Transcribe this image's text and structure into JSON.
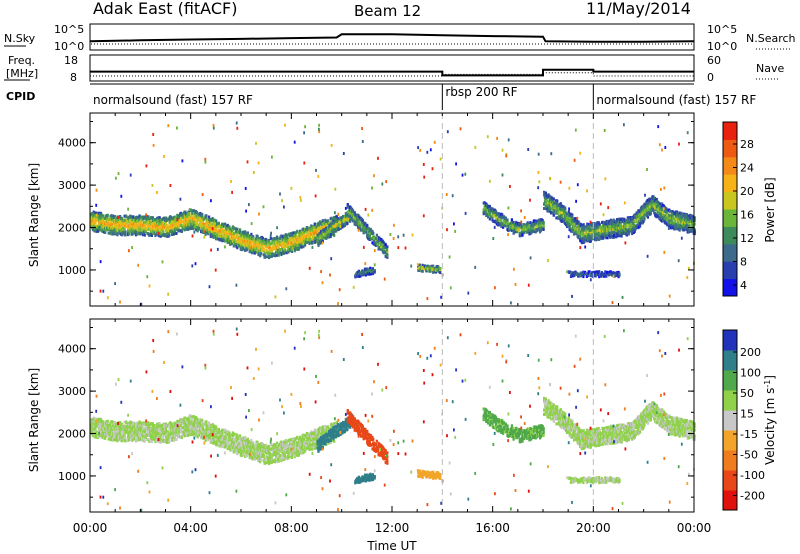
{
  "header": {
    "radar": "Adak East (fitACF)",
    "beam": "Beam 12",
    "date": "11/May/2014"
  },
  "noise_panel": {
    "left_label": "N.Sky",
    "right_label": "N.Search",
    "left_ticks": [
      "10^5",
      "10^0"
    ],
    "right_ticks": [
      "10^5",
      "10^0"
    ]
  },
  "freq_panel": {
    "left_label_1": "Freq.",
    "left_label_2": "[MHz]",
    "right_label": "Nave",
    "left_ticks": [
      "18",
      "8"
    ],
    "right_ticks": [
      "60",
      "0"
    ]
  },
  "cpid": {
    "label": "CPID",
    "segments": [
      {
        "text": "normalsound (fast) 157 RF",
        "start": 0,
        "end": 14
      },
      {
        "text": "rbsp 200 RF",
        "start": 14,
        "end": 20
      },
      {
        "text": "normalsound (fast) 157 RF",
        "start": 20,
        "end": 24
      }
    ]
  },
  "power_colorbar": {
    "label": "Power [dB]",
    "ticks": [
      "28",
      "24",
      "20",
      "16",
      "12",
      "8",
      "4"
    ],
    "colors": [
      "#1212e8",
      "#2a3fae",
      "#3c6a8a",
      "#3d8a5a",
      "#6ab53a",
      "#c8c61f",
      "#f7b218",
      "#f38a17",
      "#ef5a12",
      "#e8220e"
    ]
  },
  "velocity_colorbar": {
    "label": "Velocity [m s",
    "exponent": "-1",
    "label_end": "]",
    "ticks": [
      "200",
      "100",
      "50",
      "15",
      "-15",
      "-50",
      "-100",
      "-200"
    ],
    "colors": [
      "#2233bb",
      "#2f7f8a",
      "#4fa84a",
      "#8fd24a",
      "#c8c8c8",
      "#f2a52a",
      "#ef7c1e",
      "#e84818",
      "#e0100c"
    ]
  },
  "chart_data": {
    "type": "heatmap",
    "xlabel": "Time UT",
    "ylabel": "Slant Range [km]",
    "xlim": [
      0,
      24
    ],
    "ylim": [
      150,
      4700
    ],
    "x_ticks": [
      "00:00",
      "04:00",
      "08:00",
      "12:00",
      "16:00",
      "20:00",
      "00:00"
    ],
    "y_ticks": [
      "1000",
      "2000",
      "3000",
      "4000"
    ],
    "mode_change_times": [
      14,
      20
    ],
    "noise_sky_level": [
      [
        0,
        0.55
      ],
      [
        2,
        0.62
      ],
      [
        4,
        0.68
      ],
      [
        6,
        0.72
      ],
      [
        8,
        0.78
      ],
      [
        9.8,
        0.82
      ],
      [
        10,
        1.05
      ],
      [
        12,
        1.05
      ],
      [
        14,
        0.98
      ],
      [
        16,
        0.92
      ],
      [
        18,
        0.88
      ],
      [
        18.1,
        0.55
      ],
      [
        20,
        0.52
      ],
      [
        22,
        0.52
      ],
      [
        24,
        0.55
      ]
    ],
    "frequency_mhz": [
      {
        "start": 0,
        "end": 10,
        "value": 10.3
      },
      {
        "start": 10,
        "end": 14,
        "value": 10.3
      },
      {
        "start": 14,
        "end": 18,
        "value": 8.6
      },
      {
        "start": 18,
        "end": 20,
        "value": 11.2
      },
      {
        "start": 20,
        "end": 24,
        "value": 10.3
      }
    ],
    "nave": [
      {
        "start": 0,
        "end": 14,
        "value": 10
      },
      {
        "start": 14,
        "end": 18,
        "value": 14
      },
      {
        "start": 18,
        "end": 20,
        "value": 18
      },
      {
        "start": 20,
        "end": 24,
        "value": 10
      }
    ],
    "echo_bands": [
      {
        "t_start": 0.0,
        "t_end": 9.8,
        "range_nodes": [
          [
            0,
            2150
          ],
          [
            1,
            2050
          ],
          [
            2,
            2050
          ],
          [
            3,
            2000
          ],
          [
            4,
            2200
          ],
          [
            5,
            1950
          ],
          [
            6,
            1700
          ],
          [
            7,
            1500
          ],
          [
            8,
            1650
          ],
          [
            9,
            1900
          ],
          [
            9.8,
            2050
          ]
        ],
        "width": 450,
        "power": 20,
        "velocity": 0
      },
      {
        "t_start": 9.0,
        "t_end": 10.4,
        "range_nodes": [
          [
            9.0,
            1700
          ],
          [
            9.6,
            2000
          ],
          [
            10.4,
            2300
          ]
        ],
        "width": 280,
        "power": 16,
        "velocity": 120
      },
      {
        "t_start": 10.2,
        "t_end": 11.8,
        "range_nodes": [
          [
            10.2,
            2400
          ],
          [
            11.0,
            1900
          ],
          [
            11.8,
            1400
          ]
        ],
        "width": 300,
        "power": 14,
        "velocity": -180
      },
      {
        "t_start": 15.6,
        "t_end": 18.0,
        "range_nodes": [
          [
            15.6,
            2450
          ],
          [
            16.2,
            2200
          ],
          [
            17.0,
            1950
          ],
          [
            18.0,
            2050
          ]
        ],
        "width": 300,
        "power": 14,
        "velocity": 40
      },
      {
        "t_start": 18.0,
        "t_end": 24.0,
        "range_nodes": [
          [
            18.0,
            2650
          ],
          [
            18.8,
            2300
          ],
          [
            19.5,
            1850
          ],
          [
            20.5,
            1950
          ],
          [
            21.5,
            2050
          ],
          [
            22.3,
            2550
          ],
          [
            23.0,
            2200
          ],
          [
            24.0,
            2050
          ]
        ],
        "width": 420,
        "power": 14,
        "velocity": 0
      },
      {
        "t_start": 13.0,
        "t_end": 13.9,
        "range_nodes": [
          [
            13.0,
            1050
          ],
          [
            13.9,
            1000
          ]
        ],
        "width": 150,
        "power": 16,
        "velocity": -50
      },
      {
        "t_start": 10.5,
        "t_end": 11.3,
        "range_nodes": [
          [
            10.5,
            900
          ],
          [
            11.3,
            1000
          ]
        ],
        "width": 150,
        "power": 10,
        "velocity": 150
      },
      {
        "t_start": 19.0,
        "t_end": 21.0,
        "range_nodes": [
          [
            19.0,
            900
          ],
          [
            21.0,
            900
          ]
        ],
        "width": 120,
        "power": 8,
        "velocity": 0
      }
    ]
  }
}
